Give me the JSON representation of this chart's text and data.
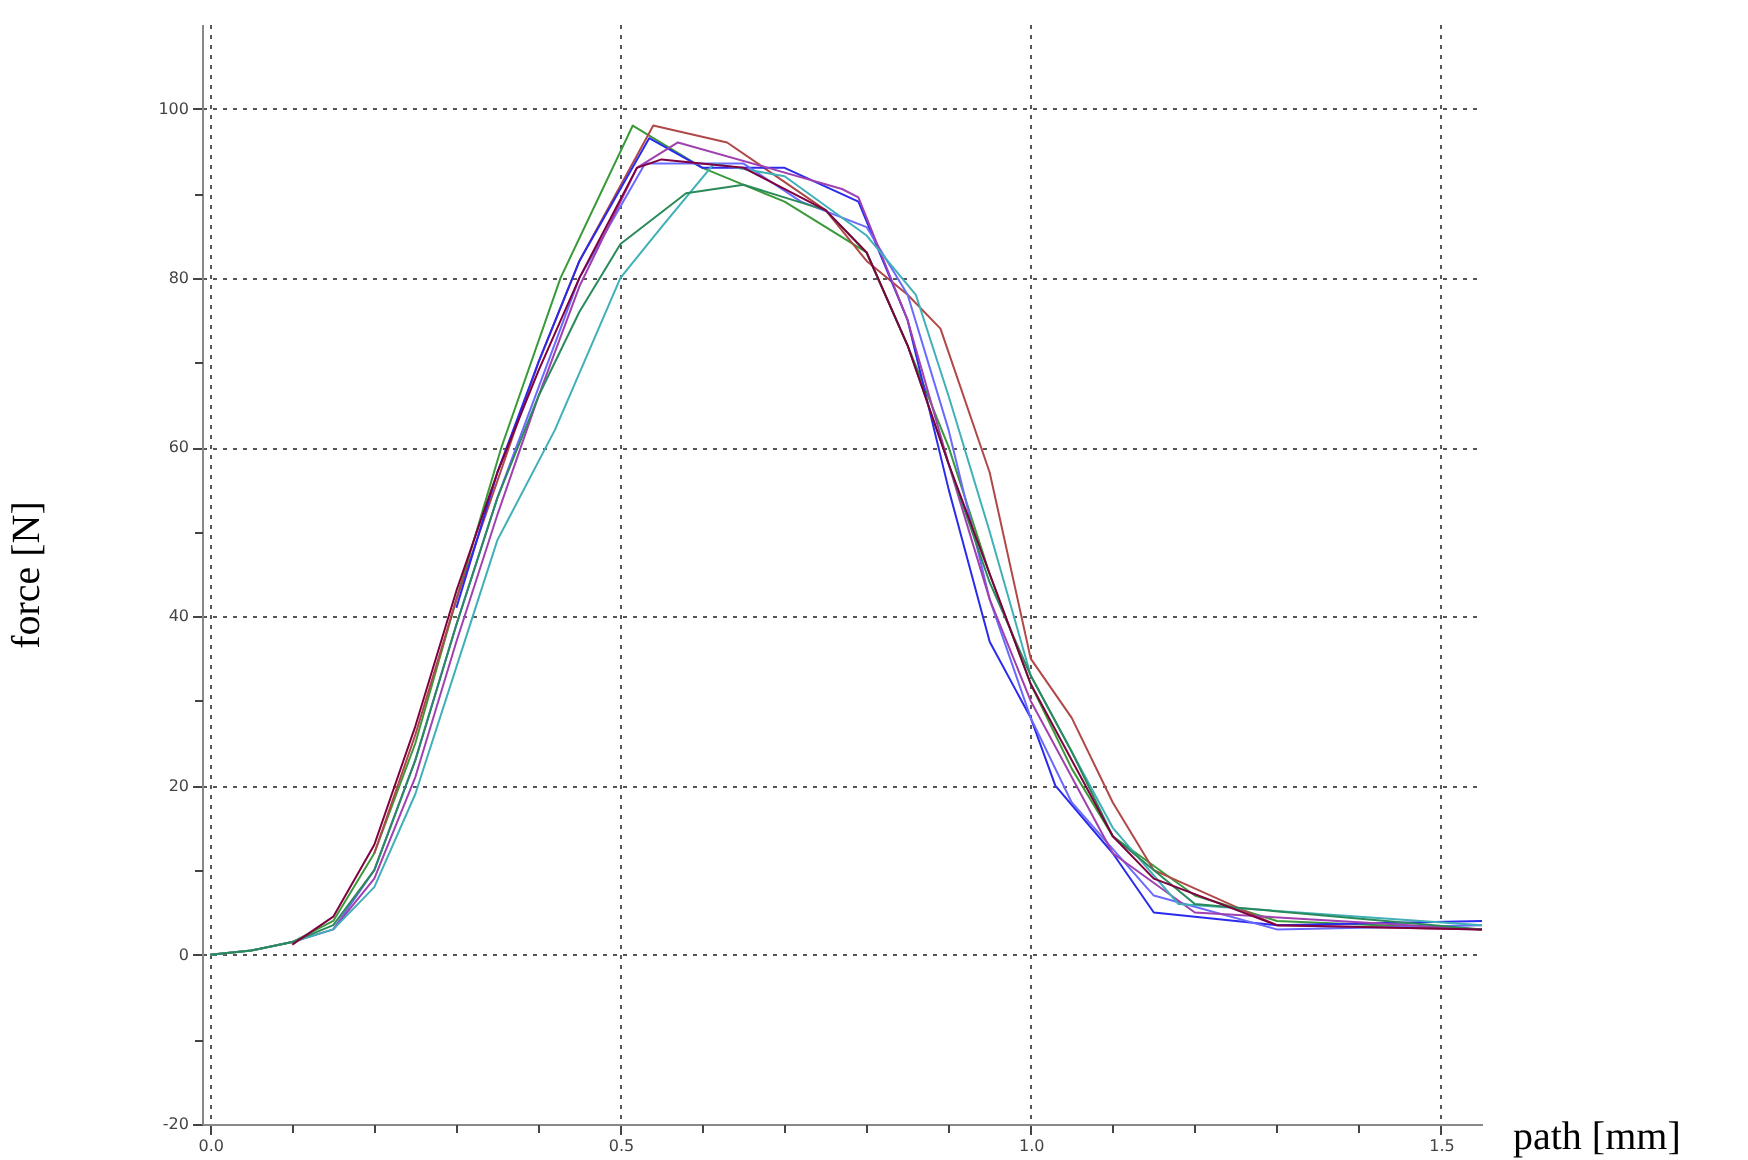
{
  "chart_data": {
    "type": "line",
    "xlabel": "path [mm]",
    "ylabel": "force [N]",
    "xlim": [
      -0.01,
      1.55
    ],
    "ylim": [
      -20,
      110
    ],
    "xticks": [
      {
        "value": 0,
        "label": "0.0"
      },
      {
        "value": 0.1,
        "label": null
      },
      {
        "value": 0.2,
        "label": null
      },
      {
        "value": 0.3,
        "label": null
      },
      {
        "value": 0.4,
        "label": null
      },
      0.5,
      {
        "value": 0.6,
        "label": null
      },
      {
        "value": 0.7,
        "label": null
      },
      {
        "value": 0.8,
        "label": null
      },
      {
        "value": 0.9,
        "label": null
      },
      {
        "value": 1,
        "label": "1.0"
      },
      {
        "value": 1.1,
        "label": null
      },
      {
        "value": 1.2,
        "label": null
      },
      {
        "value": 1.3,
        "label": null
      },
      {
        "value": 1.4,
        "label": null
      },
      1.5
    ],
    "yticks": [
      -20,
      {
        "value": -10,
        "label": null
      },
      0,
      {
        "value": 10,
        "label": null
      },
      20,
      {
        "value": 30,
        "label": null
      },
      40,
      {
        "value": 50,
        "label": null
      },
      60,
      {
        "value": 70,
        "label": null
      },
      80,
      {
        "value": 90,
        "label": null
      },
      100
    ],
    "grid": true,
    "marker": "none",
    "line_style": "solid",
    "series": [
      {
        "color": "#3a9a3a",
        "x": [
          0,
          0.05,
          0.1,
          0.15,
          0.2,
          0.25,
          0.3,
          0.355,
          0.427,
          0.515,
          0.6,
          0.7,
          0.8,
          0.85,
          0.9,
          0.95,
          1.0,
          1.05,
          1.1,
          1.2,
          1.3,
          1.55
        ],
        "values": [
          0,
          0.5,
          1.5,
          4,
          12,
          25,
          42,
          60,
          80,
          98,
          93,
          89,
          83,
          72,
          60,
          45,
          32,
          22,
          14,
          7,
          4,
          3
        ]
      },
      {
        "color": "#b04848",
        "x": [
          0.2,
          0.25,
          0.3,
          0.35,
          0.4,
          0.45,
          0.54,
          0.63,
          0.75,
          0.8,
          0.85,
          0.89,
          0.95,
          1.0,
          1.05,
          1.1,
          1.15,
          1.3,
          1.55
        ],
        "values": [
          12,
          26,
          42,
          56,
          70,
          82,
          98,
          96,
          88,
          82,
          78,
          74,
          57,
          35,
          28,
          18,
          10,
          3.5,
          3
        ]
      },
      {
        "color": "#2a2aee",
        "x": [
          0.3,
          0.35,
          0.4,
          0.45,
          0.535,
          0.6,
          0.7,
          0.79,
          0.85,
          0.9,
          0.95,
          1.0,
          1.03,
          1.1,
          1.15,
          1.3,
          1.55
        ],
        "values": [
          41,
          57,
          70,
          82,
          96.5,
          93,
          93,
          89,
          75,
          55,
          37,
          28,
          20,
          12,
          5,
          3.5,
          4
        ]
      },
      {
        "color": "#6a6aff",
        "x": [
          0.15,
          0.2,
          0.25,
          0.3,
          0.35,
          0.4,
          0.45,
          0.53,
          0.65,
          0.72,
          0.8,
          0.85,
          0.9,
          0.95,
          1.0,
          1.05,
          1.15,
          1.3,
          1.55
        ],
        "values": [
          3,
          10,
          23,
          39,
          54,
          67,
          80,
          93.5,
          93.5,
          89,
          86,
          78,
          62,
          42,
          28,
          18,
          7,
          3,
          3.5
        ]
      },
      {
        "color": "#a040b0",
        "x": [
          0,
          0.05,
          0.1,
          0.15,
          0.2,
          0.25,
          0.3,
          0.35,
          0.4,
          0.45,
          0.52,
          0.57,
          0.68,
          0.77,
          0.79,
          0.85,
          0.9,
          0.95,
          1.0,
          1.1,
          1.2,
          1.55
        ],
        "values": [
          0,
          0.5,
          1.5,
          3,
          9,
          21,
          37,
          52,
          66,
          79,
          93,
          96,
          93,
          90.5,
          89.5,
          75,
          58,
          42,
          30,
          12,
          5,
          3
        ]
      },
      {
        "color": "#40b0b8",
        "x": [
          0,
          0.05,
          0.1,
          0.15,
          0.2,
          0.25,
          0.3,
          0.35,
          0.42,
          0.5,
          0.55,
          0.614,
          0.7,
          0.8,
          0.86,
          0.9,
          0.95,
          1.0,
          1.1,
          1.18,
          1.55
        ],
        "values": [
          0,
          0.5,
          1.5,
          3,
          8,
          19,
          34,
          49,
          62,
          80,
          86,
          93.5,
          92,
          85,
          78,
          66,
          50,
          33,
          15,
          6,
          3.5
        ]
      },
      {
        "color": "#2a8a5a",
        "x": [
          0,
          0.05,
          0.1,
          0.15,
          0.2,
          0.25,
          0.3,
          0.35,
          0.4,
          0.45,
          0.5,
          0.58,
          0.65,
          0.75,
          0.8,
          0.85,
          0.9,
          0.95,
          1.0,
          1.05,
          1.1,
          1.2,
          1.55
        ],
        "values": [
          0,
          0.5,
          1.5,
          3.5,
          10,
          23,
          39,
          54,
          66,
          76,
          84,
          90,
          91,
          88,
          83,
          72,
          58,
          44,
          33,
          24,
          14,
          6,
          3
        ]
      },
      {
        "color": "#800040",
        "x": [
          0.1,
          0.15,
          0.2,
          0.25,
          0.3,
          0.35,
          0.4,
          0.45,
          0.52,
          0.55,
          0.65,
          0.75,
          0.8,
          0.85,
          0.9,
          1.0,
          1.1,
          1.15,
          1.3,
          1.55
        ],
        "values": [
          1.2,
          4.5,
          13,
          27,
          43,
          57,
          69,
          80,
          93,
          94,
          93,
          88,
          83,
          72,
          58,
          32,
          14,
          9,
          3.5,
          3
        ]
      }
    ]
  }
}
